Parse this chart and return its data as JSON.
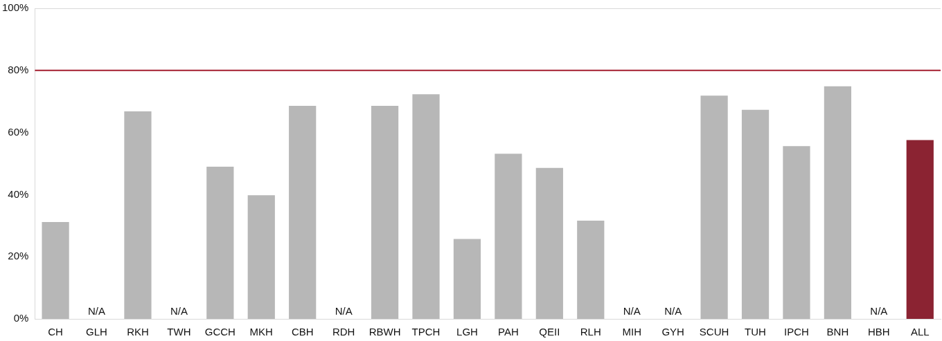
{
  "chart_data": {
    "type": "bar",
    "categories": [
      "CH",
      "GLH",
      "RKH",
      "TWH",
      "GCCH",
      "MKH",
      "CBH",
      "RDH",
      "RBWH",
      "TPCH",
      "LGH",
      "PAH",
      "QEII",
      "RLH",
      "MIH",
      "GYH",
      "SCUH",
      "TUH",
      "IPCH",
      "BNH",
      "HBH",
      "ALL"
    ],
    "values": [
      31.2,
      null,
      66.8,
      null,
      49.0,
      39.8,
      68.6,
      null,
      68.6,
      72.3,
      25.7,
      53.2,
      48.6,
      31.6,
      null,
      null,
      71.9,
      67.3,
      55.6,
      74.9,
      null,
      57.6
    ],
    "colors": [
      "#b7b7b7",
      "#b7b7b7",
      "#b7b7b7",
      "#b7b7b7",
      "#b7b7b7",
      "#b7b7b7",
      "#b7b7b7",
      "#b7b7b7",
      "#b7b7b7",
      "#b7b7b7",
      "#b7b7b7",
      "#b7b7b7",
      "#b7b7b7",
      "#b7b7b7",
      "#b7b7b7",
      "#b7b7b7",
      "#b7b7b7",
      "#b7b7b7",
      "#b7b7b7",
      "#b7b7b7",
      "#b7b7b7",
      "#8b2332"
    ],
    "value_labels": [
      null,
      "N/A",
      null,
      "N/A",
      null,
      null,
      null,
      "N/A",
      null,
      null,
      null,
      null,
      null,
      null,
      "N/A",
      "N/A",
      null,
      null,
      null,
      null,
      "N/A",
      null
    ],
    "ylim": [
      0,
      100
    ],
    "yticks": [
      {
        "value": 0,
        "label": "0%"
      },
      {
        "value": 20,
        "label": "20%"
      },
      {
        "value": 40,
        "label": "40%"
      },
      {
        "value": 60,
        "label": "60%"
      },
      {
        "value": 80,
        "label": "80%"
      },
      {
        "value": 100,
        "label": "100%"
      }
    ],
    "ref_lines": [
      {
        "axis": "y",
        "value": 80,
        "color": "#a31d2e"
      }
    ],
    "grid": false,
    "legend": false
  }
}
